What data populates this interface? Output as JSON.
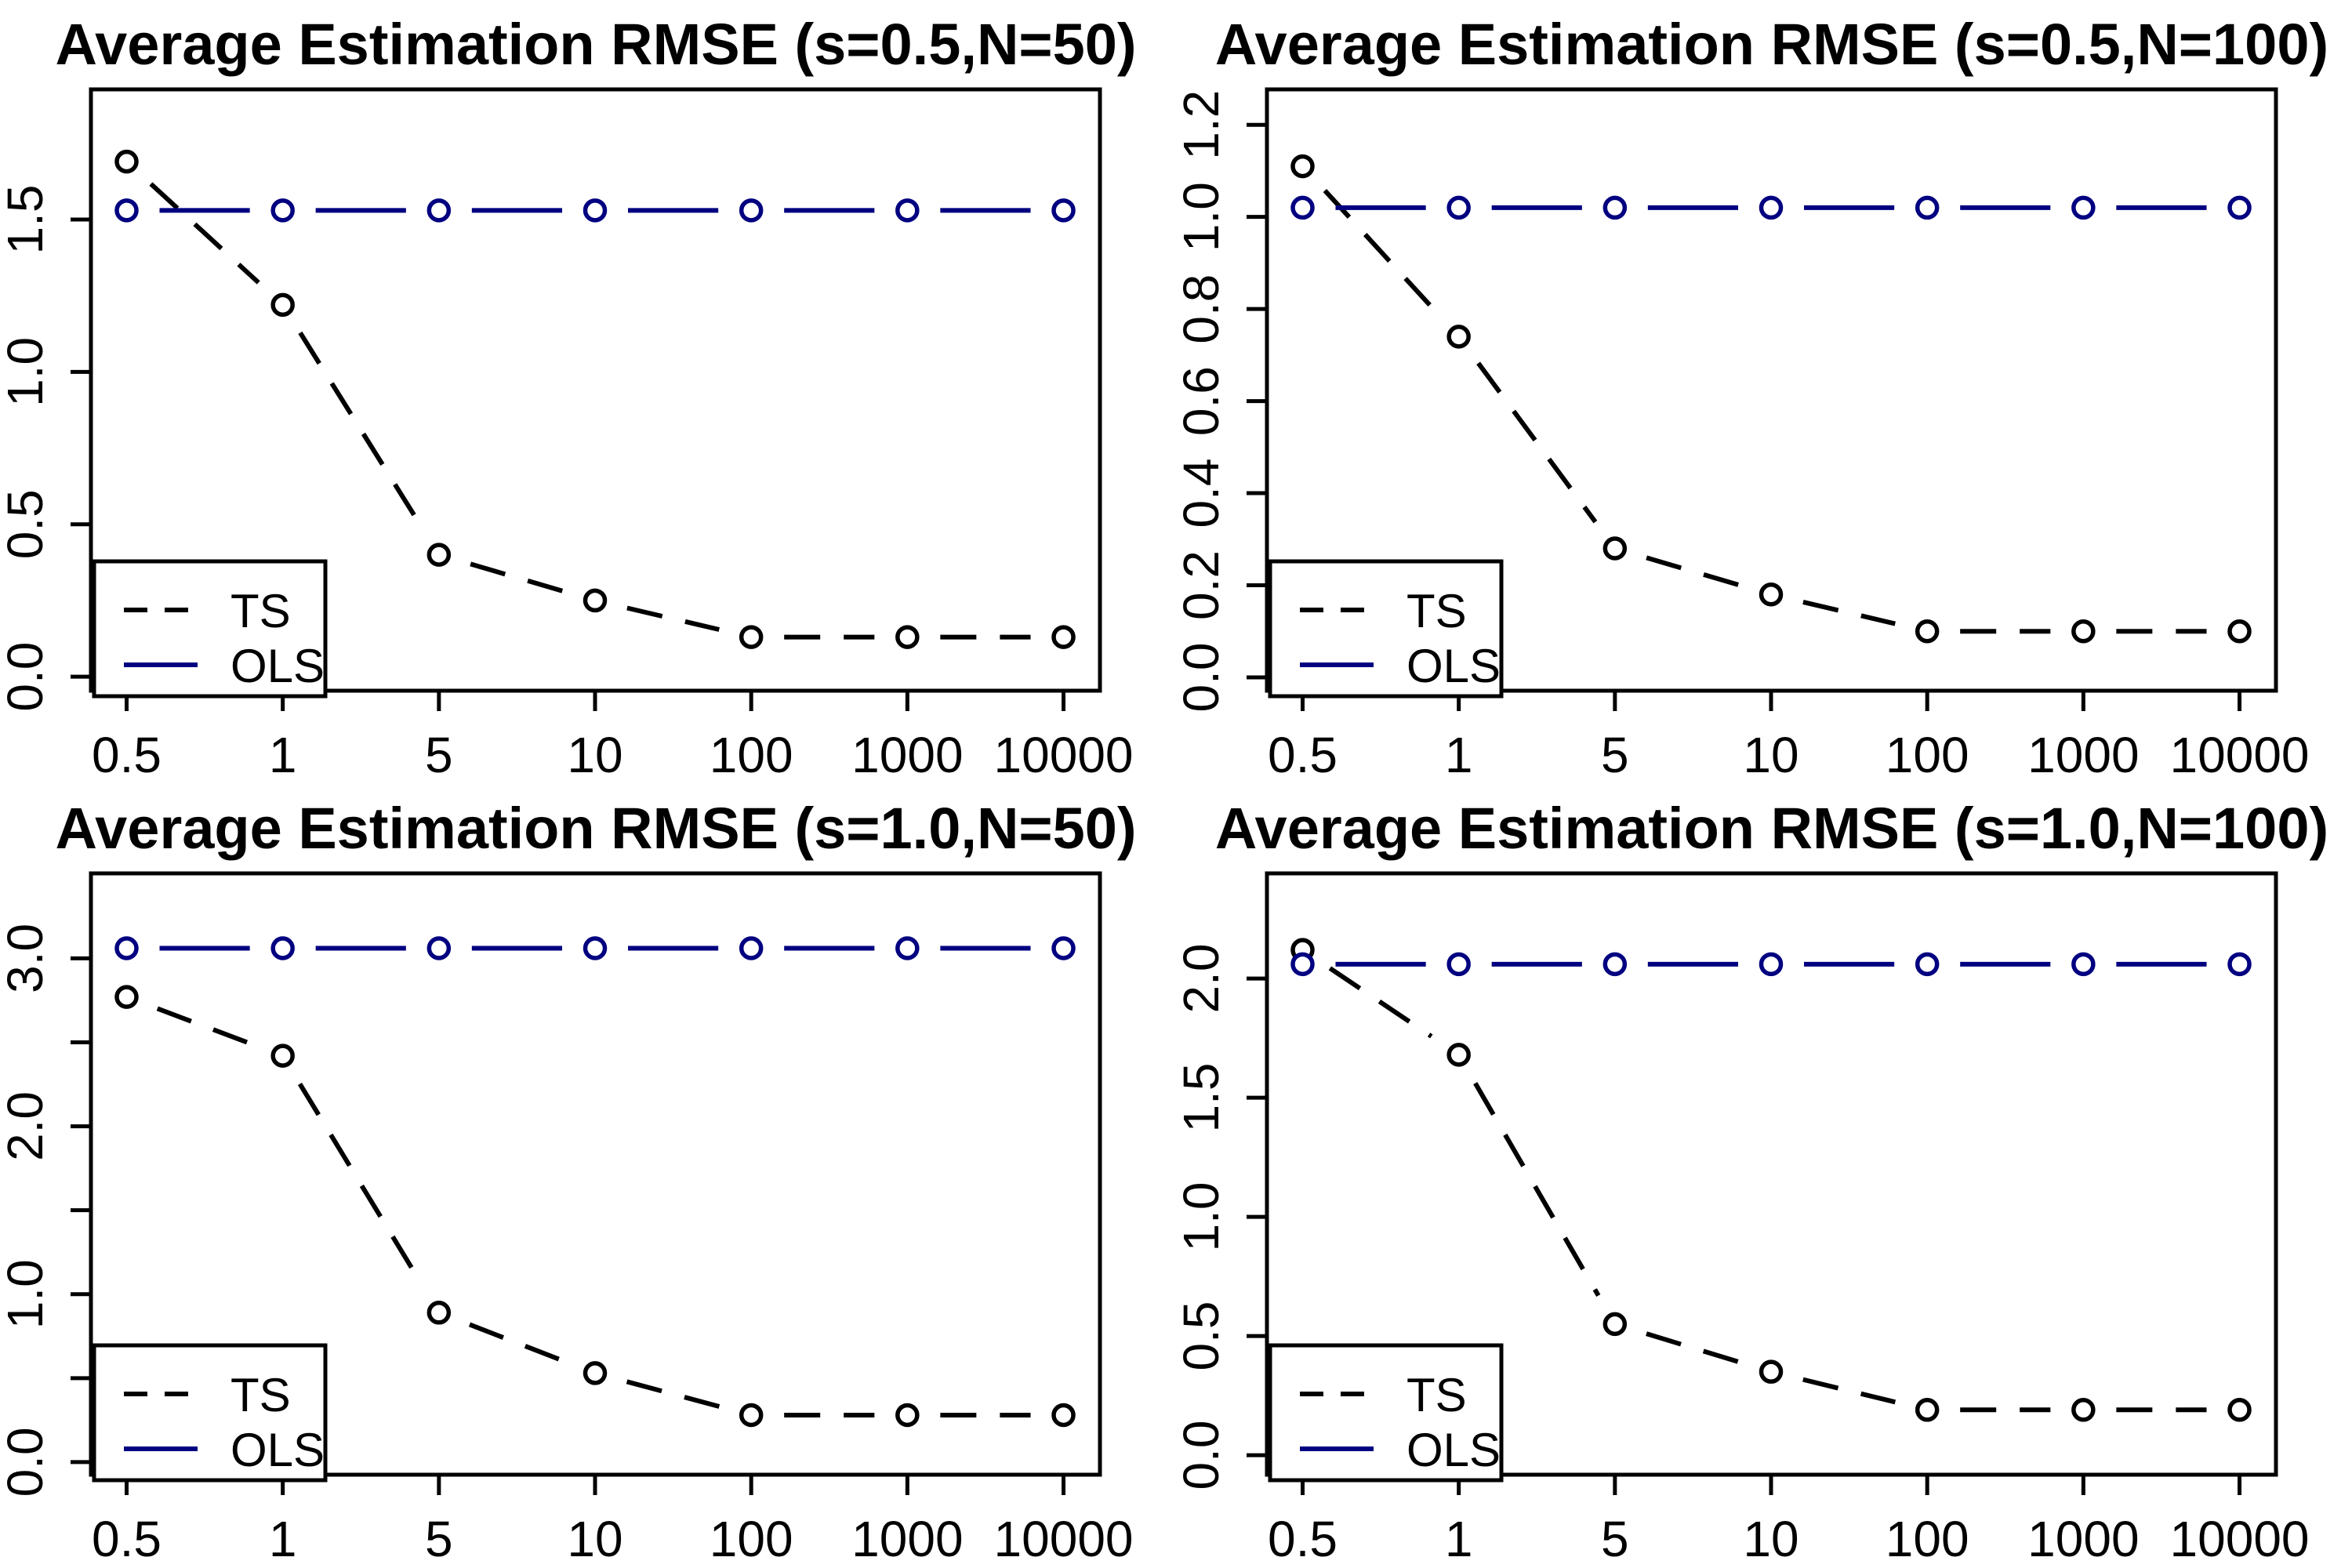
{
  "figure": {
    "background": "#ffffff",
    "axis_color": "#000000",
    "text_color": "#000000"
  },
  "legend": {
    "items": [
      {
        "label": "TS",
        "color": "#000000",
        "style": "dashed"
      },
      {
        "label": "OLS",
        "color": "#000080",
        "style": "solid"
      }
    ]
  },
  "chart_data": [
    {
      "id": "rmse-s05-n50",
      "type": "line",
      "title": "Average Estimation RMSE (s=0.5,N=50)",
      "x_categories": [
        "0.5",
        "1",
        "5",
        "10",
        "100",
        "1000",
        "10000"
      ],
      "series": [
        {
          "name": "TS",
          "color": "#000000",
          "style": "dashed",
          "marker": "open-circle",
          "values": [
            1.69,
            1.22,
            0.4,
            0.25,
            0.13,
            0.13,
            0.13
          ]
        },
        {
          "name": "OLS",
          "color": "#000080",
          "style": "solid",
          "marker": "open-circle",
          "values": [
            1.53,
            1.53,
            1.53,
            1.53,
            1.53,
            1.53,
            1.53
          ]
        }
      ],
      "ylim": [
        -0.046,
        1.927
      ],
      "y_ticks": [
        {
          "v": 0.0,
          "label": "0.0"
        },
        {
          "v": 0.5,
          "label": "0.5"
        },
        {
          "v": 1.0,
          "label": "1.0"
        },
        {
          "v": 1.5,
          "label": "1.5"
        }
      ],
      "grid": false,
      "legend_position": "bottomleft"
    },
    {
      "id": "rmse-s05-n100",
      "type": "line",
      "title": "Average Estimation RMSE (s=0.5,N=100)",
      "x_categories": [
        "0.5",
        "1",
        "5",
        "10",
        "100",
        "1000",
        "10000"
      ],
      "series": [
        {
          "name": "TS",
          "color": "#000000",
          "style": "dashed",
          "marker": "open-circle",
          "values": [
            1.11,
            0.74,
            0.28,
            0.18,
            0.1,
            0.1,
            0.1
          ]
        },
        {
          "name": "OLS",
          "color": "#000080",
          "style": "solid",
          "marker": "open-circle",
          "values": [
            1.02,
            1.02,
            1.02,
            1.02,
            1.02,
            1.02,
            1.02
          ]
        }
      ],
      "ylim": [
        -0.029,
        1.277
      ],
      "y_ticks": [
        {
          "v": 0.0,
          "label": "0.0"
        },
        {
          "v": 0.2,
          "label": "0.2"
        },
        {
          "v": 0.4,
          "label": "0.4"
        },
        {
          "v": 0.6,
          "label": "0.6"
        },
        {
          "v": 0.8,
          "label": "0.8"
        },
        {
          "v": 1.0,
          "label": "1.0"
        },
        {
          "v": 1.2,
          "label": "1.2"
        }
      ],
      "grid": false,
      "legend_position": "bottomleft"
    },
    {
      "id": "rmse-s10-n50",
      "type": "line",
      "title": "Average Estimation RMSE (s=1.0,N=50)",
      "x_categories": [
        "0.5",
        "1",
        "5",
        "10",
        "100",
        "1000",
        "10000"
      ],
      "series": [
        {
          "name": "TS",
          "color": "#000000",
          "style": "dashed",
          "marker": "open-circle",
          "values": [
            2.77,
            2.42,
            0.89,
            0.53,
            0.28,
            0.28,
            0.28
          ]
        },
        {
          "name": "OLS",
          "color": "#000080",
          "style": "solid",
          "marker": "open-circle",
          "values": [
            3.06,
            3.06,
            3.06,
            3.06,
            3.06,
            3.06,
            3.06
          ]
        }
      ],
      "ylim": [
        -0.075,
        3.506
      ],
      "y_ticks": [
        {
          "v": 0.0,
          "label": "0.0"
        },
        {
          "v": 0.5,
          "label": ""
        },
        {
          "v": 1.0,
          "label": "1.0"
        },
        {
          "v": 1.5,
          "label": ""
        },
        {
          "v": 2.0,
          "label": "2.0"
        },
        {
          "v": 2.5,
          "label": ""
        },
        {
          "v": 3.0,
          "label": "3.0"
        }
      ],
      "grid": false,
      "legend_position": "bottomleft"
    },
    {
      "id": "rmse-s10-n100",
      "type": "line",
      "title": "Average Estimation RMSE (s=1.0,N=100)",
      "x_categories": [
        "0.5",
        "1",
        "5",
        "10",
        "100",
        "1000",
        "10000"
      ],
      "series": [
        {
          "name": "TS",
          "color": "#000000",
          "style": "dashed",
          "marker": "open-circle",
          "values": [
            2.12,
            1.68,
            0.55,
            0.35,
            0.19,
            0.19,
            0.19
          ]
        },
        {
          "name": "OLS",
          "color": "#000080",
          "style": "solid",
          "marker": "open-circle",
          "values": [
            2.06,
            2.06,
            2.06,
            2.06,
            2.06,
            2.06,
            2.06
          ]
        }
      ],
      "ylim": [
        -0.082,
        2.441
      ],
      "y_ticks": [
        {
          "v": 0.0,
          "label": "0.0"
        },
        {
          "v": 0.5,
          "label": "0.5"
        },
        {
          "v": 1.0,
          "label": "1.0"
        },
        {
          "v": 1.5,
          "label": "1.5"
        },
        {
          "v": 2.0,
          "label": "2.0"
        }
      ],
      "grid": false,
      "legend_position": "bottomleft"
    }
  ]
}
